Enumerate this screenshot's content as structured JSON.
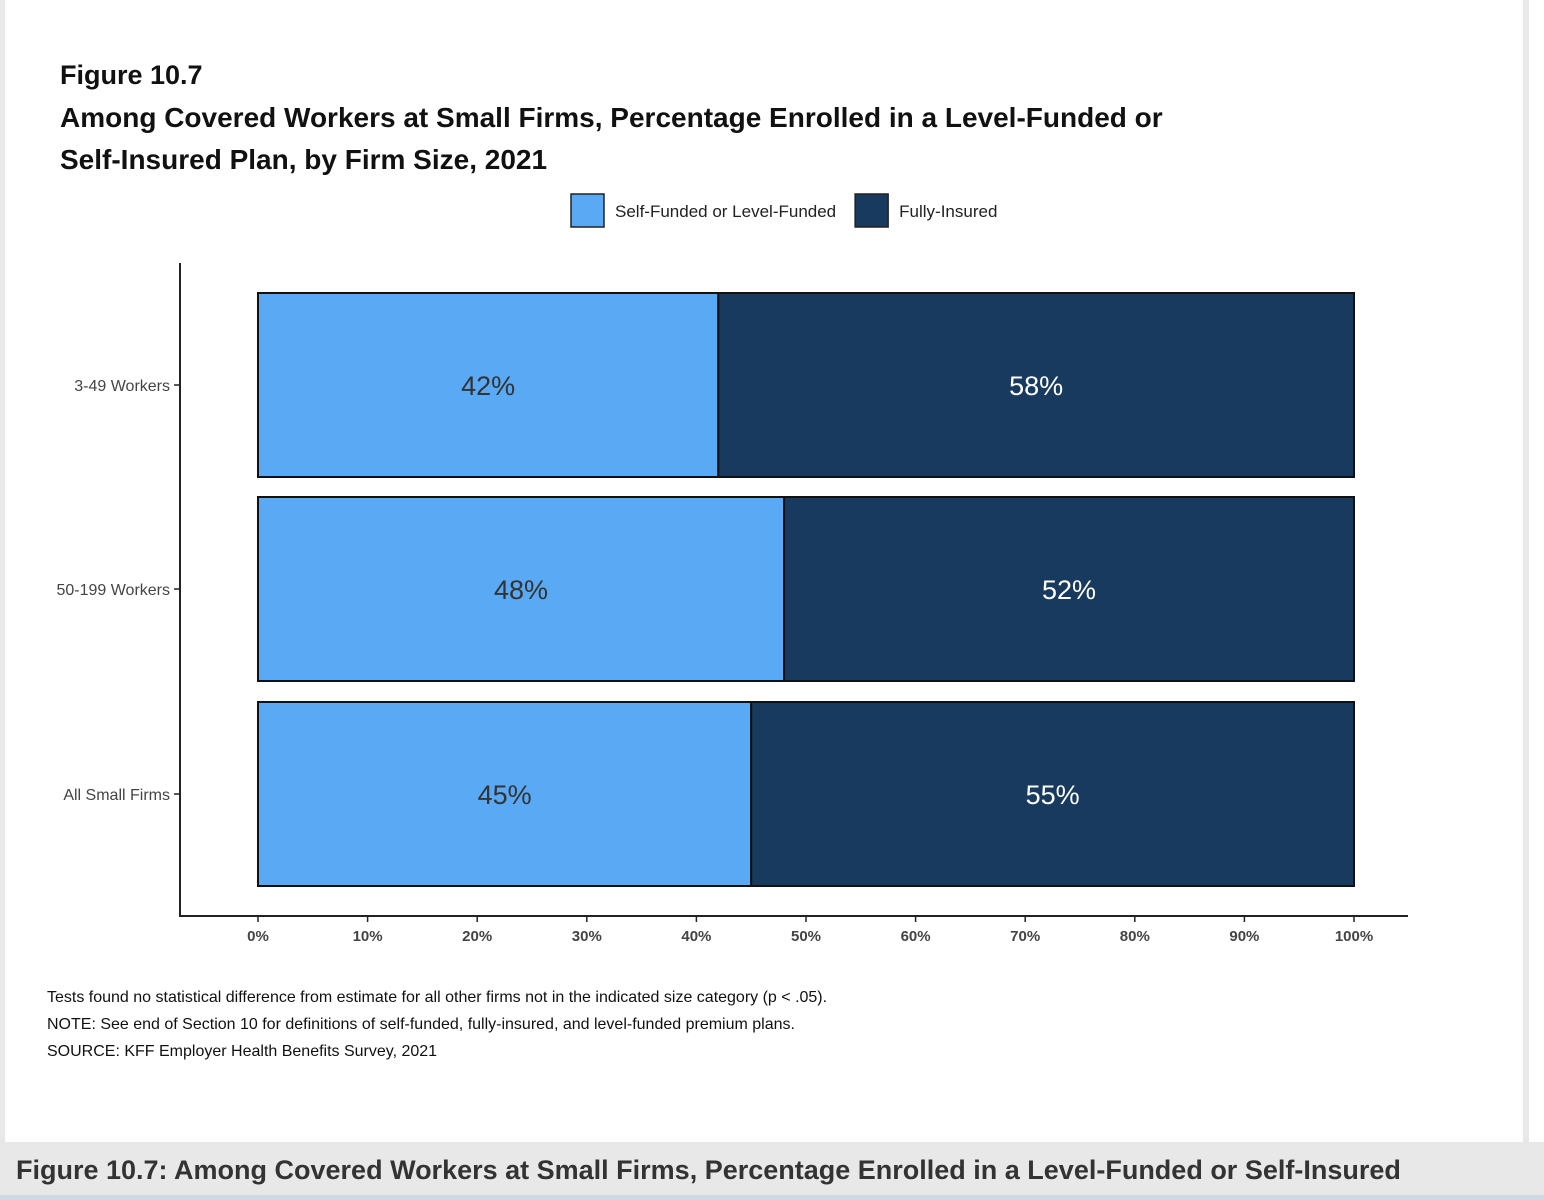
{
  "chart_data": {
    "type": "bar",
    "orientation": "horizontal",
    "stacked": true,
    "figure_label": "Figure 10.7",
    "title": "Among Covered Workers at Small Firms, Percentage Enrolled in a Level-Funded or Self-Insured Plan, by Firm Size, 2021",
    "title_lines": [
      "Among Covered Workers at Small Firms, Percentage Enrolled in a Level-Funded or",
      "Self-Insured Plan, by Firm Size, 2021"
    ],
    "categories": [
      "3-49 Workers",
      "50-199 Workers",
      "All Small Firms"
    ],
    "series": [
      {
        "name": "Self-Funded or Level-Funded",
        "values": [
          42,
          48,
          45
        ],
        "labels": [
          "42%",
          "48%",
          "45%"
        ],
        "color": "#5aa9f4"
      },
      {
        "name": "Fully-Insured",
        "values": [
          58,
          52,
          55
        ],
        "labels": [
          "58%",
          "52%",
          "55%"
        ],
        "color": "#173a5e"
      }
    ],
    "xlim": [
      0,
      100
    ],
    "xticks": [
      "0%",
      "10%",
      "20%",
      "30%",
      "40%",
      "50%",
      "60%",
      "70%",
      "80%",
      "90%",
      "100%"
    ],
    "legend_placement": "top",
    "grid": false,
    "notes": [
      "Tests found no statistical difference from estimate for all other firms not in the indicated size category (p < .05).",
      "NOTE: See end of Section 10 for definitions of self-funded, fully-insured, and level-funded premium plans.",
      "SOURCE: KFF Employer Health Benefits Survey, 2021"
    ]
  },
  "caption": "Figure 10.7: Among Covered Workers at Small Firms, Percentage Enrolled in a Level-Funded or Self-Insured"
}
